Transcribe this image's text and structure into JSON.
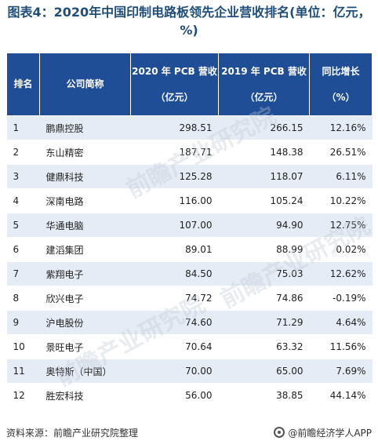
{
  "title": "图表4：2020年中国印制电路板领先企业营收排名(单位：亿元，%)",
  "headers": {
    "rank": "排名",
    "company": "公司简称",
    "rev2020_line1": "2020 年 PCB 营收",
    "rev2020_line2": "（亿元）",
    "rev2019_line1": "2019 年 PCB 营收",
    "rev2019_line2": "（亿元）",
    "growth_line1": "同比增长",
    "growth_line2": "（%）"
  },
  "rows": [
    {
      "rank": "1",
      "company": "鹏鼎控股",
      "rev2020": "298.51",
      "rev2019": "266.15",
      "growth": "12.16%"
    },
    {
      "rank": "2",
      "company": "东山精密",
      "rev2020": "187.71",
      "rev2019": "148.38",
      "growth": "26.51%"
    },
    {
      "rank": "3",
      "company": "健鼎科技",
      "rev2020": "125.28",
      "rev2019": "118.07",
      "growth": "6.11%"
    },
    {
      "rank": "4",
      "company": "深南电路",
      "rev2020": "116.00",
      "rev2019": "105.24",
      "growth": "10.22%"
    },
    {
      "rank": "5",
      "company": "华通电脑",
      "rev2020": "107.00",
      "rev2019": "94.90",
      "growth": "12.75%"
    },
    {
      "rank": "6",
      "company": "建滔集团",
      "rev2020": "89.01",
      "rev2019": "88.99",
      "growth": "0.02%"
    },
    {
      "rank": "7",
      "company": "紫翔电子",
      "rev2020": "84.50",
      "rev2019": "75.03",
      "growth": "12.62%"
    },
    {
      "rank": "8",
      "company": "欣兴电子",
      "rev2020": "74.72",
      "rev2019": "74.86",
      "growth": "-0.19%"
    },
    {
      "rank": "9",
      "company": "沪电股份",
      "rev2020": "74.60",
      "rev2019": "71.29",
      "growth": "4.64%"
    },
    {
      "rank": "10",
      "company": "景旺电子",
      "rev2020": "70.64",
      "rev2019": "63.32",
      "growth": "11.56%"
    },
    {
      "rank": "11",
      "company": "奥特斯（中国）",
      "rev2020": "70.00",
      "rev2019": "65.00",
      "growth": "7.69%"
    },
    {
      "rank": "12",
      "company": "胜宏科技",
      "rev2020": "56.00",
      "rev2019": "38.85",
      "growth": "44.14%"
    }
  ],
  "watermark": "前瞻产业研究院",
  "footer": {
    "source": "资料来源：前瞻产业研究院整理",
    "brand": "@前瞻经济学人APP",
    "brand_icon": "brand-icon"
  }
}
